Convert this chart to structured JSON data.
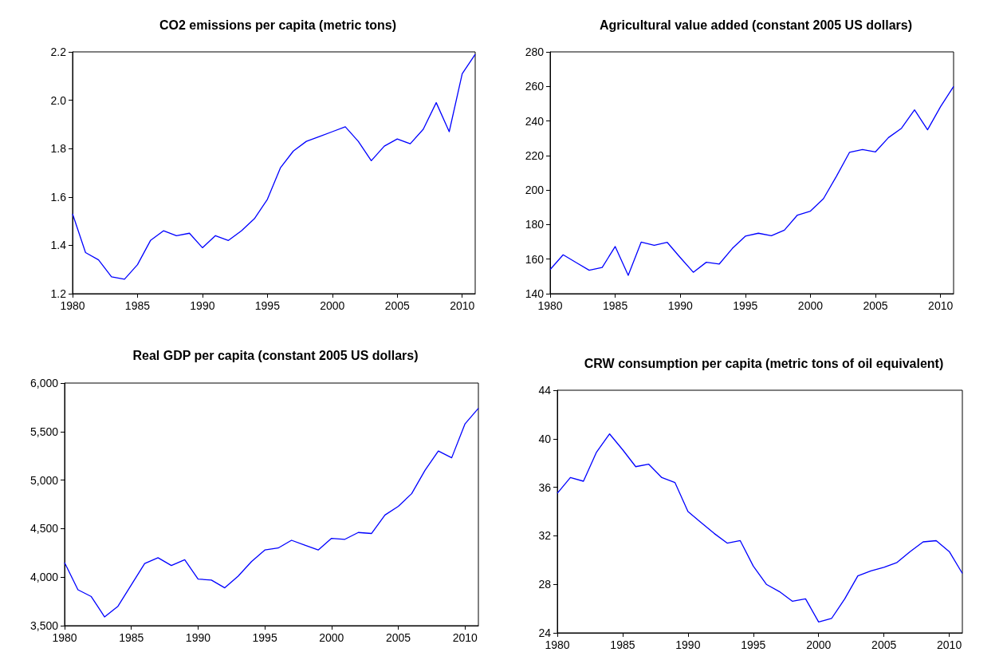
{
  "chart_data": [
    {
      "type": "line",
      "title": "CO2 emissions per capita (metric tons)",
      "x": [
        1980,
        1981,
        1982,
        1983,
        1984,
        1985,
        1986,
        1987,
        1988,
        1989,
        1990,
        1991,
        1992,
        1993,
        1994,
        1995,
        1996,
        1997,
        1998,
        1999,
        2000,
        2001,
        2002,
        2003,
        2004,
        2005,
        2006,
        2007,
        2008,
        2009,
        2010,
        2011
      ],
      "series": [
        {
          "color": "#0000ff",
          "values": [
            1.53,
            1.37,
            1.34,
            1.27,
            1.26,
            1.32,
            1.42,
            1.46,
            1.44,
            1.45,
            1.39,
            1.44,
            1.42,
            1.46,
            1.51,
            1.59,
            1.72,
            1.79,
            1.83,
            1.85,
            1.87,
            1.89,
            1.83,
            1.75,
            1.81,
            1.84,
            1.82,
            1.88,
            1.99,
            1.87,
            2.11,
            2.19
          ]
        }
      ],
      "xlim": [
        1980,
        2011
      ],
      "xticks": [
        1980,
        1985,
        1990,
        1995,
        2000,
        2005,
        2010
      ],
      "ylim": [
        1.2,
        2.2
      ],
      "yticks": [
        1.2,
        1.4,
        1.6,
        1.8,
        {
          "value": 2,
          "label": "2.0"
        },
        2.2
      ],
      "grid": false,
      "marker": "none",
      "line_style": "solid"
    },
    {
      "type": "line",
      "title": "Agricultural value added (constant 2005 US dollars)",
      "x": [
        1980,
        1981,
        1982,
        1983,
        1984,
        1985,
        1986,
        1987,
        1988,
        1989,
        1990,
        1991,
        1992,
        1993,
        1994,
        1995,
        1996,
        1997,
        1998,
        1999,
        2000,
        2001,
        2002,
        2003,
        2004,
        2005,
        2006,
        2007,
        2008,
        2009,
        2010,
        2011
      ],
      "series": [
        {
          "color": "#0000ff",
          "values": [
            154,
            162.5,
            158,
            153.6,
            155.2,
            167.3,
            150.6,
            169.9,
            168,
            169.7,
            160.9,
            152.4,
            158.2,
            157.2,
            166.2,
            173.3,
            175,
            173.6,
            176.8,
            185.5,
            187.8,
            195,
            208,
            221.8,
            223.5,
            222.1,
            230.4,
            235.8,
            246.4,
            234.9,
            248.3,
            260
          ]
        }
      ],
      "xlim": [
        1980,
        2011
      ],
      "xticks": [
        1980,
        1985,
        1990,
        1995,
        2000,
        2005,
        2010
      ],
      "ylim": [
        140,
        280
      ],
      "yticks": [
        140,
        160,
        180,
        200,
        220,
        240,
        260,
        280
      ],
      "grid": false,
      "marker": "none",
      "line_style": "solid"
    },
    {
      "type": "line",
      "title": "Real GDP per capita (constant 2005 US dollars)",
      "x": [
        1980,
        1981,
        1982,
        1983,
        1984,
        1985,
        1986,
        1987,
        1988,
        1989,
        1990,
        1991,
        1992,
        1993,
        1994,
        1995,
        1996,
        1997,
        1998,
        1999,
        2000,
        2001,
        2002,
        2003,
        2004,
        2005,
        2006,
        2007,
        2008,
        2009,
        2010,
        2011
      ],
      "series": [
        {
          "color": "#0000ff",
          "values": [
            4150,
            3870,
            3800,
            3590,
            3700,
            3920,
            4140,
            4200,
            4120,
            4180,
            3980,
            3970,
            3890,
            4010,
            4160,
            4280,
            4300,
            4380,
            4330,
            4280,
            4400,
            4390,
            4460,
            4450,
            4640,
            4730,
            4860,
            5100,
            5300,
            5230,
            5580,
            5740
          ]
        }
      ],
      "xlim": [
        1980,
        2011
      ],
      "xticks": [
        1980,
        1985,
        1990,
        1995,
        2000,
        2005,
        2010
      ],
      "ylim": [
        3500,
        6000
      ],
      "yticks": [
        {
          "value": 3500,
          "label": "3,500"
        },
        {
          "value": 4000,
          "label": "4,000"
        },
        {
          "value": 4500,
          "label": "4,500"
        },
        {
          "value": 5000,
          "label": "5,000"
        },
        {
          "value": 5500,
          "label": "5,500"
        },
        {
          "value": 6000,
          "label": "6,000"
        }
      ],
      "grid": false,
      "marker": "none",
      "line_style": "solid"
    },
    {
      "type": "line",
      "title": "CRW consumption per capita (metric tons of oil equivalent)",
      "x": [
        1980,
        1981,
        1982,
        1983,
        1984,
        1985,
        1986,
        1987,
        1988,
        1989,
        1990,
        1991,
        1992,
        1993,
        1994,
        1995,
        1996,
        1997,
        1998,
        1999,
        2000,
        2001,
        2002,
        2003,
        2004,
        2005,
        2006,
        2007,
        2008,
        2009,
        2010,
        2011
      ],
      "series": [
        {
          "color": "#0000ff",
          "values": [
            35.5,
            36.8,
            36.5,
            38.9,
            40.4,
            39.1,
            37.7,
            37.9,
            36.8,
            36.4,
            34.0,
            33.1,
            32.2,
            31.4,
            31.6,
            29.5,
            28.0,
            27.4,
            26.6,
            26.8,
            24.9,
            25.2,
            26.8,
            28.7,
            29.1,
            29.4,
            29.8,
            30.7,
            31.5,
            31.6,
            30.7,
            28.9
          ]
        }
      ],
      "xlim": [
        1980,
        2011
      ],
      "xticks": [
        1980,
        1985,
        1990,
        1995,
        2000,
        2005,
        2010
      ],
      "ylim": [
        24,
        44
      ],
      "yticks": [
        24,
        28,
        32,
        36,
        40,
        44
      ],
      "grid": false,
      "marker": "none",
      "line_style": "solid"
    }
  ]
}
